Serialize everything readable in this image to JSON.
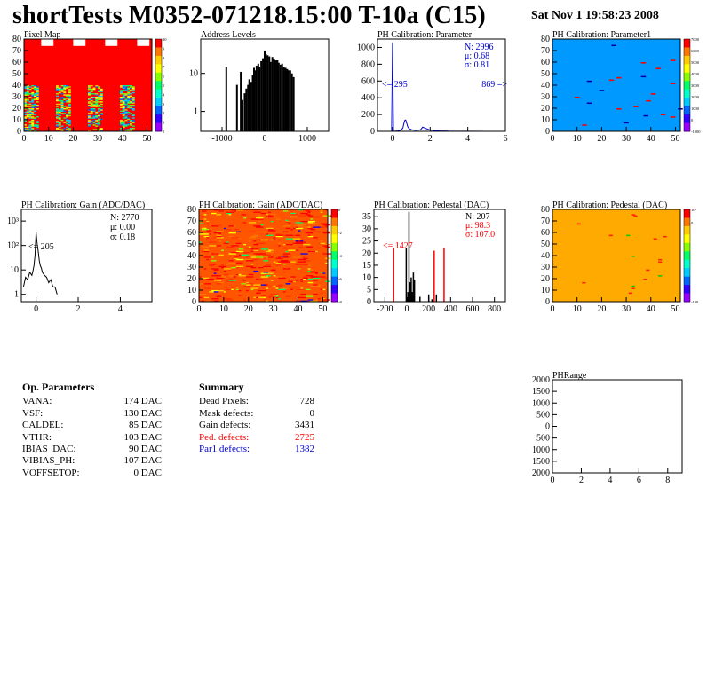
{
  "header": {
    "title": "shortTests M0352-071218.15:00 T-10a (C15)",
    "date": "Sat Nov  1 19:58:23 2008"
  },
  "colors": {
    "hist_red": "#ff0000",
    "calib_blue": "#0000cc",
    "par1_background": "#0099ff",
    "pedestal_background": "#ffaa00",
    "defect_red": "#ff0000",
    "defect_blue": "#0000cc"
  },
  "chart_data": [
    {
      "id": "pixel-map",
      "type": "heatmap",
      "title": "Pixel Map",
      "xlim": [
        0,
        52
      ],
      "ylim": [
        0,
        80
      ],
      "x_ticks": [
        "0",
        "10",
        "20",
        "30",
        "40",
        "50"
      ],
      "y_ticks": [
        "0",
        "10",
        "20",
        "30",
        "40",
        "50",
        "60",
        "70",
        "80"
      ],
      "colorbar_ticks": [
        "10",
        "9",
        "8",
        "7",
        "6",
        "5",
        "4",
        "3",
        "2",
        "1",
        "0"
      ],
      "pattern": "dominant value 10 (red); four periodic groups of columns with lower values near the bottom and gaps near the top"
    },
    {
      "id": "address-levels",
      "type": "bar",
      "title": "Address Levels",
      "log_y": true,
      "xlim": [
        -1500,
        1500
      ],
      "x_ticks": [
        "-1000",
        "0",
        "1000"
      ],
      "y_ticks": [
        "1",
        "10"
      ],
      "x": [
        -900,
        -650,
        -560,
        -520,
        -470,
        -430,
        -390,
        -360,
        -320,
        -280,
        -250,
        -230,
        -190,
        -150,
        -120,
        -80,
        -40,
        0,
        30,
        70,
        110,
        140,
        180,
        220,
        260,
        300,
        330,
        370,
        410,
        450,
        490,
        530,
        560,
        600,
        640,
        680
      ],
      "values": [
        15,
        5,
        11,
        2,
        3,
        4,
        5,
        7,
        6,
        9,
        14,
        12,
        16,
        18,
        15,
        21,
        25,
        40,
        32,
        30,
        28,
        20,
        27,
        24,
        22,
        22,
        19,
        17,
        18,
        15,
        14,
        13,
        12,
        12,
        10,
        8
      ]
    },
    {
      "id": "ph-calibration-parameter",
      "type": "line",
      "title": "PH Calibration: Parameter",
      "xlim": [
        -0.8,
        6
      ],
      "ylim": [
        0,
        1100
      ],
      "x_ticks": [
        "0",
        "2",
        "4",
        "6"
      ],
      "y_ticks": [
        "0",
        "200",
        "400",
        "600",
        "800",
        "1000"
      ],
      "annotations": [
        "<= 295",
        "869 =>"
      ],
      "stats": {
        "entries": "N: 2996",
        "mean": "μ: 0.68",
        "rms": "σ: 0.81"
      },
      "x": [
        -0.05,
        0.0,
        0.05,
        0.3,
        0.45,
        0.55,
        0.6,
        0.65,
        0.7,
        0.75,
        0.8,
        0.85,
        0.9,
        1.0,
        1.2,
        1.4,
        1.5,
        1.6,
        1.7,
        2.0,
        2.5,
        3.0,
        4.0,
        5.0,
        6.0
      ],
      "values": [
        0,
        1060,
        0,
        5,
        15,
        40,
        90,
        130,
        135,
        100,
        60,
        40,
        30,
        20,
        12,
        15,
        20,
        50,
        40,
        15,
        5,
        2,
        1,
        0,
        0
      ]
    },
    {
      "id": "ph-calibration-parameter1",
      "type": "heatmap",
      "title": "PH Calibration: Parameter1",
      "xlim": [
        0,
        52
      ],
      "ylim": [
        0,
        80
      ],
      "x_ticks": [
        "0",
        "10",
        "20",
        "30",
        "40",
        "50"
      ],
      "y_ticks": [
        "0",
        "10",
        "20",
        "30",
        "40",
        "50",
        "60",
        "70",
        "80"
      ],
      "colorbar_ticks": [
        "7000",
        "6000",
        "5000",
        "4000",
        "3000",
        "2000",
        "1000",
        "0",
        "-1000"
      ],
      "pattern": "uniform light blue with a few scattered red and dark blue pixels"
    },
    {
      "id": "ph-calibration-gain",
      "type": "line",
      "title": "PH Calibration: Gain (ADC/DAC)",
      "log_y": true,
      "xlim": [
        -0.7,
        5.5
      ],
      "x_ticks": [
        "0",
        "2",
        "4"
      ],
      "y_ticks": [
        "1",
        "10",
        "10²",
        "10³"
      ],
      "annotations": [
        "<= 205"
      ],
      "stats": {
        "entries": "N: 2770",
        "mean": "μ: 0.00",
        "rms": "σ: 0.18"
      },
      "x": [
        -0.6,
        -0.5,
        -0.4,
        -0.3,
        -0.2,
        -0.15,
        -0.1,
        -0.05,
        0.0,
        0.05,
        0.1,
        0.15,
        0.2,
        0.25,
        0.3,
        0.4,
        0.5,
        0.6,
        0.7,
        0.8,
        0.9,
        1.0
      ],
      "values": [
        2,
        5,
        4,
        8,
        6,
        9,
        15,
        40,
        350,
        120,
        60,
        25,
        15,
        12,
        8,
        6,
        5,
        3,
        4,
        2,
        2,
        1
      ]
    },
    {
      "id": "ph-calibration-gain-map",
      "type": "heatmap",
      "title": "PH Calibration: Gain (ADC/DAC)",
      "xlim": [
        0,
        52
      ],
      "ylim": [
        0,
        80
      ],
      "x_ticks": [
        "0",
        "10",
        "20",
        "30",
        "40",
        "50"
      ],
      "y_ticks": [
        "0",
        "10",
        "20",
        "30",
        "40",
        "50",
        "60",
        "70",
        "80"
      ],
      "colorbar_ticks": [
        "0",
        "-2",
        "-4",
        "-6",
        "-8"
      ],
      "pattern": "mostly red/orange with scattered yellow, green and blue pixels"
    },
    {
      "id": "ph-calibration-pedestal",
      "type": "bar",
      "title": "PH Calibration: Pedestal (DAC)",
      "xlim": [
        -300,
        900
      ],
      "ylim": [
        0,
        38
      ],
      "x_ticks": [
        "-200",
        "0",
        "200",
        "400",
        "600",
        "800"
      ],
      "y_ticks": [
        "0",
        "5",
        "10",
        "15",
        "20",
        "25",
        "30",
        "35"
      ],
      "annotations": [
        "<= 1427"
      ],
      "stats": {
        "entries": "N:  207",
        "mean": "μ: 98.3",
        "rms": "σ: 107.0"
      },
      "x": [
        -120,
        -5,
        10,
        20,
        30,
        40,
        50,
        60,
        70,
        120,
        200,
        230,
        250,
        270,
        340
      ],
      "values": [
        22,
        22,
        4,
        37,
        8,
        10,
        4,
        12,
        9,
        2,
        3,
        1,
        21,
        3,
        22
      ]
    },
    {
      "id": "ph-calibration-pedestal-map",
      "type": "heatmap",
      "title": "PH Calibration: Pedestal (DAC)",
      "xlim": [
        0,
        52
      ],
      "ylim": [
        0,
        80
      ],
      "x_ticks": [
        "0",
        "10",
        "20",
        "30",
        "40",
        "50"
      ],
      "y_ticks": [
        "0",
        "10",
        "20",
        "30",
        "40",
        "50",
        "60",
        "70",
        "80"
      ],
      "colorbar_ticks": [
        "10³",
        "0",
        "",
        "",
        "",
        "",
        "",
        "-100"
      ],
      "pattern": "uniform orange with a few scattered red and green pixels"
    },
    {
      "id": "ph-range",
      "type": "scatter",
      "title": "PHRange",
      "xlim": [
        0,
        9
      ],
      "ylim": [
        -2000,
        2000
      ],
      "x_ticks": [
        "0",
        "2",
        "4",
        "6",
        "8"
      ],
      "y_ticks": [
        "2000",
        "1500",
        "1000",
        "500",
        "0",
        "500",
        "1000",
        "1500",
        "2000"
      ],
      "values": []
    }
  ],
  "op_parameters": {
    "title": "Op. Parameters",
    "rows": [
      {
        "name": "VANA:",
        "value": "174 DAC"
      },
      {
        "name": "VSF:",
        "value": "130 DAC"
      },
      {
        "name": "CALDEL:",
        "value": "85 DAC"
      },
      {
        "name": "VTHR:",
        "value": "103 DAC"
      },
      {
        "name": "IBIAS_DAC:",
        "value": "90 DAC"
      },
      {
        "name": "VIBIAS_PH:",
        "value": "107 DAC"
      },
      {
        "name": "VOFFSETOP:",
        "value": "0 DAC"
      }
    ]
  },
  "summary": {
    "title": "Summary",
    "rows": [
      {
        "name": "Dead Pixels:",
        "value": "728",
        "color": "#000000"
      },
      {
        "name": "Mask defects:",
        "value": "0",
        "color": "#000000"
      },
      {
        "name": "Gain defects:",
        "value": "3431",
        "color": "#000000"
      },
      {
        "name": "Ped. defects:",
        "value": "2725",
        "color": "#ff0000"
      },
      {
        "name": "Par1 defects:",
        "value": "1382",
        "color": "#0000cc"
      }
    ]
  }
}
